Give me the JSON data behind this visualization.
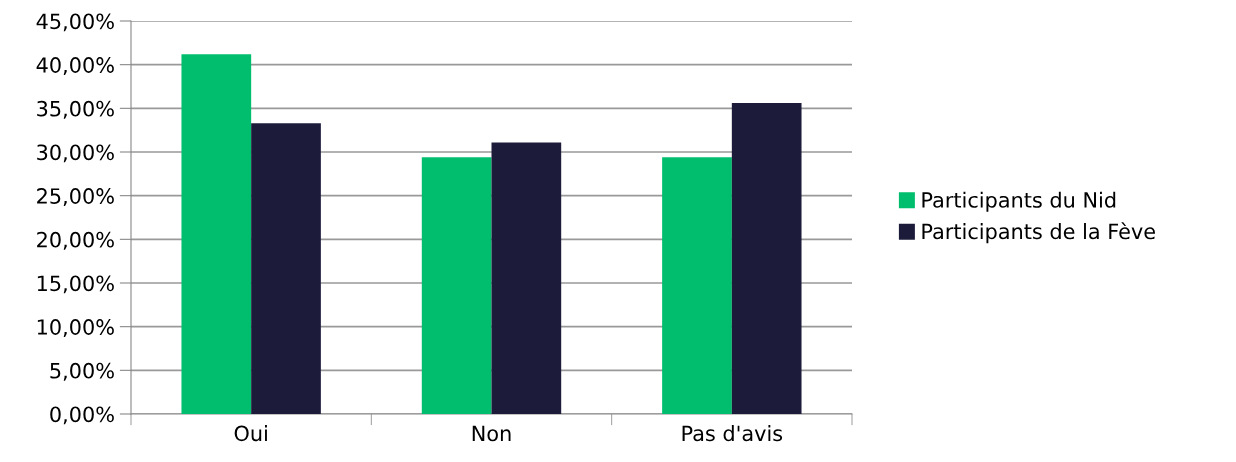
{
  "chart_data": {
    "type": "bar",
    "categories": [
      "Oui",
      "Non",
      "Pas d'avis"
    ],
    "series": [
      {
        "name": "Participants du Nid",
        "color": "#00be6e",
        "values": [
          41.2,
          29.4,
          29.4
        ]
      },
      {
        "name": "Participants de la Fève",
        "color": "#1c1c3a",
        "values": [
          33.3,
          31.1,
          35.6
        ]
      }
    ],
    "ylim": [
      0,
      45
    ],
    "yticks": [
      {
        "value": 0,
        "label": "0,00%"
      },
      {
        "value": 5,
        "label": "5,00%"
      },
      {
        "value": 10,
        "label": "10,00%"
      },
      {
        "value": 15,
        "label": "15,00%"
      },
      {
        "value": 20,
        "label": "20,00%"
      },
      {
        "value": 25,
        "label": "25,00%"
      },
      {
        "value": 30,
        "label": "30,00%"
      },
      {
        "value": 35,
        "label": "35,00%"
      },
      {
        "value": 40,
        "label": "40,00%"
      },
      {
        "value": 45,
        "label": "45,00%"
      }
    ],
    "grid": "y",
    "legend": "right"
  }
}
